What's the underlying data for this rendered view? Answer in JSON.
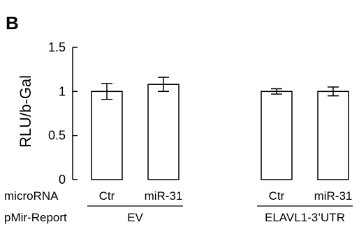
{
  "panel_label": "B",
  "chart_data": {
    "type": "bar",
    "ylabel": "RLU/b-Gal",
    "ylim": [
      0,
      1.5
    ],
    "yticks": [
      0,
      0.5,
      1,
      1.5
    ],
    "ytick_labels": [
      "0",
      "0.5",
      "1",
      "1.5"
    ],
    "categories": [
      "Ctr",
      "miR-31",
      "Ctr",
      "miR-31"
    ],
    "values": [
      1.0,
      1.08,
      1.0,
      1.0
    ],
    "errors": [
      0.09,
      0.08,
      0.03,
      0.05
    ],
    "bar_fill": "#ffffff",
    "bar_stroke": "#000000",
    "row_labels": {
      "microrna": "microRNA",
      "reporter": "pMir-Report"
    },
    "groups": [
      {
        "label": "EV",
        "bars": [
          0,
          1
        ]
      },
      {
        "label": "ELAVL1-3’UTR",
        "bars": [
          2,
          3
        ]
      }
    ]
  }
}
